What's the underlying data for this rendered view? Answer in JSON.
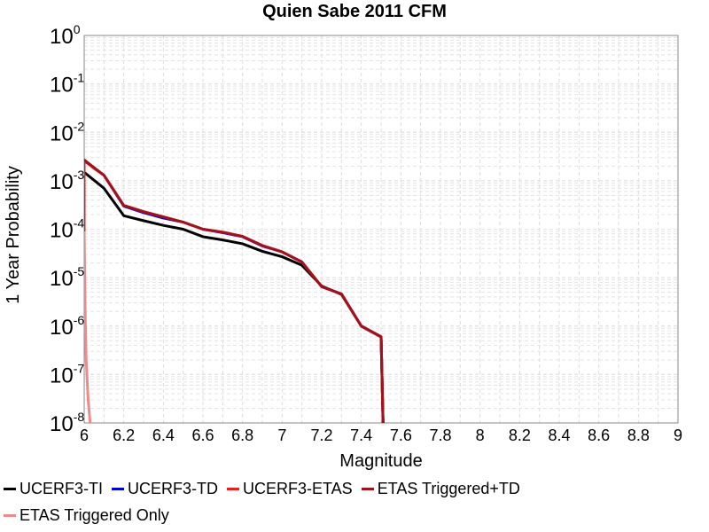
{
  "chart_data": {
    "type": "line",
    "title": "Quien Sabe 2011 CFM",
    "xlabel": "Magnitude",
    "ylabel": "1 Year Probability",
    "xlim": [
      6,
      9
    ],
    "ylim": [
      1e-08,
      1
    ],
    "yscale": "log",
    "grid": true,
    "legend_position": "bottom",
    "x_ticks": [
      "6",
      "6.2",
      "6.4",
      "6.6",
      "6.8",
      "7",
      "7.2",
      "7.4",
      "7.6",
      "7.8",
      "8",
      "8.2",
      "8.4",
      "8.6",
      "8.8",
      "9"
    ],
    "y_ticks": [
      {
        "base": "10",
        "exp": "0"
      },
      {
        "base": "10",
        "exp": "-1"
      },
      {
        "base": "10",
        "exp": "-2"
      },
      {
        "base": "10",
        "exp": "-3"
      },
      {
        "base": "10",
        "exp": "-4"
      },
      {
        "base": "10",
        "exp": "-5"
      },
      {
        "base": "10",
        "exp": "-6"
      },
      {
        "base": "10",
        "exp": "-7"
      },
      {
        "base": "10",
        "exp": "-8"
      }
    ],
    "series": [
      {
        "name": "UCERF3-TI",
        "color": "#000000",
        "x": [
          6.0,
          6.1,
          6.2,
          6.3,
          6.4,
          6.5,
          6.6,
          6.7,
          6.8,
          6.9,
          7.0,
          7.1,
          7.2,
          7.3,
          7.4,
          7.5,
          7.51
        ],
        "y": [
          0.0015,
          0.0007,
          0.00019,
          0.00015,
          0.00012,
          0.0001,
          7e-05,
          6e-05,
          5e-05,
          3.5e-05,
          2.7e-05,
          1.8e-05,
          6.7e-06,
          4.5e-06,
          1e-06,
          6e-07,
          1e-08
        ]
      },
      {
        "name": "UCERF3-TD",
        "color": "#0000dd",
        "x": [
          6.0,
          6.1,
          6.2,
          6.3,
          6.4,
          6.5,
          6.6,
          6.7,
          6.8,
          6.9,
          7.0,
          7.1,
          7.2,
          7.3,
          7.4,
          7.5,
          7.51
        ],
        "y": [
          0.0026,
          0.0013,
          0.0003,
          0.00022,
          0.00017,
          0.00014,
          0.0001,
          8.5e-05,
          7e-05,
          4.5e-05,
          3.4e-05,
          2.1e-05,
          6.5e-06,
          4.6e-06,
          1e-06,
          6e-07,
          1e-08
        ]
      },
      {
        "name": "UCERF3-ETAS",
        "color": "#e8201c",
        "x": [
          6.0,
          6.0,
          6.01,
          6.03,
          6.05,
          6.1,
          6.2,
          6.3,
          6.4,
          6.5,
          6.6,
          6.7,
          6.8,
          6.9,
          7.0,
          7.1,
          7.2,
          7.3,
          7.4,
          7.5,
          7.51
        ],
        "y": [
          9e-05,
          0.0027,
          0.0025,
          0.0021,
          0.0018,
          0.0013,
          0.00031,
          0.00023,
          0.00018,
          0.00014,
          0.0001,
          8.7e-05,
          7.1e-05,
          4.6e-05,
          3.4e-05,
          2.1e-05,
          6.5e-06,
          4.6e-06,
          1e-06,
          6e-07,
          1e-08
        ]
      },
      {
        "name": "ETAS Triggered+TD",
        "color": "#a3121a",
        "x": [
          6.0,
          6.1,
          6.2,
          6.3,
          6.4,
          6.5,
          6.6,
          6.7,
          6.8,
          6.9,
          7.0,
          7.1,
          7.2,
          7.3,
          7.4,
          7.5,
          7.51
        ],
        "y": [
          0.0027,
          0.0013,
          0.00031,
          0.00023,
          0.00018,
          0.00014,
          0.0001,
          8.7e-05,
          7.1e-05,
          4.6e-05,
          3.4e-05,
          2.1e-05,
          6.5e-06,
          4.6e-06,
          1e-06,
          6e-07,
          1e-08
        ]
      },
      {
        "name": "ETAS Triggered Only",
        "color": "#f08a8a",
        "x": [
          6.0,
          6.005,
          6.01,
          6.02,
          6.03
        ],
        "y": [
          9e-05,
          2e-06,
          2e-07,
          3e-08,
          1e-08
        ]
      }
    ]
  }
}
